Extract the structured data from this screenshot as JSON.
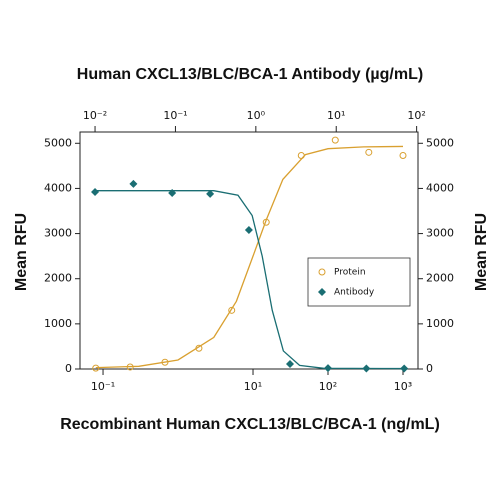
{
  "chart_data": {
    "type": "scatter",
    "x2label": "Human CXCL13/BLC/BCA-1 Antibody (µg/mL)",
    "xlabel": "Recombinant Human CXCL13/BLC/BCA-1 (ng/mL)",
    "ylabel": "Mean RFU",
    "y2label": "Mean RFU",
    "xscale": "log",
    "xlim": [
      0.0493,
      1585
    ],
    "xticks": [
      {
        "value": 0.1,
        "label": "10⁻¹"
      },
      {
        "value": 10,
        "label": "10¹"
      },
      {
        "value": 100,
        "label": "10²"
      },
      {
        "value": 1000,
        "label": "10³"
      }
    ],
    "x2lim": [
      0.0065,
      104
    ],
    "x2ticks": [
      {
        "value": 0.01,
        "label": "10⁻²"
      },
      {
        "value": 0.1,
        "label": "10⁻¹"
      },
      {
        "value": 1,
        "label": "10⁰"
      },
      {
        "value": 10,
        "label": "10¹"
      },
      {
        "value": 100,
        "label": "10²"
      }
    ],
    "ylim": [
      0,
      5250
    ],
    "yticks": [
      0,
      1000,
      2000,
      3000,
      4000,
      5000
    ],
    "y2lim": [
      0,
      5250
    ],
    "y2ticks": [
      0,
      1000,
      2000,
      3000,
      4000,
      5000
    ],
    "legend": "center right",
    "series": [
      {
        "name": "Protein",
        "color": "#d9a030",
        "marker": "circle",
        "x": [
          0.08,
          0.23,
          0.67,
          1.9,
          5.2,
          15,
          44,
          125,
          350,
          1000
        ],
        "values": [
          20,
          45,
          150,
          460,
          1300,
          3250,
          4730,
          5070,
          4800,
          4730
        ],
        "curve_x": [
          0.08,
          0.3,
          1,
          3,
          6,
          10,
          15,
          25,
          50,
          100,
          300,
          1000
        ],
        "curve_values": [
          30,
          60,
          200,
          700,
          1500,
          2500,
          3300,
          4200,
          4750,
          4880,
          4920,
          4930
        ]
      },
      {
        "name": "Antibody",
        "color": "#1a6e73",
        "marker": "diamond",
        "xaxis": "x2",
        "x": [
          0.01,
          0.03,
          0.091,
          0.27,
          0.82,
          2.66,
          7.9,
          23.7,
          70
        ],
        "values": [
          3920,
          4100,
          3900,
          3880,
          3080,
          110,
          20,
          10,
          10
        ],
        "curve_x": [
          0.01,
          0.3,
          0.6,
          0.9,
          1.2,
          1.6,
          2.2,
          3.5,
          7,
          70
        ],
        "curve_values": [
          3950,
          3950,
          3850,
          3400,
          2500,
          1300,
          400,
          80,
          15,
          10
        ]
      }
    ]
  }
}
